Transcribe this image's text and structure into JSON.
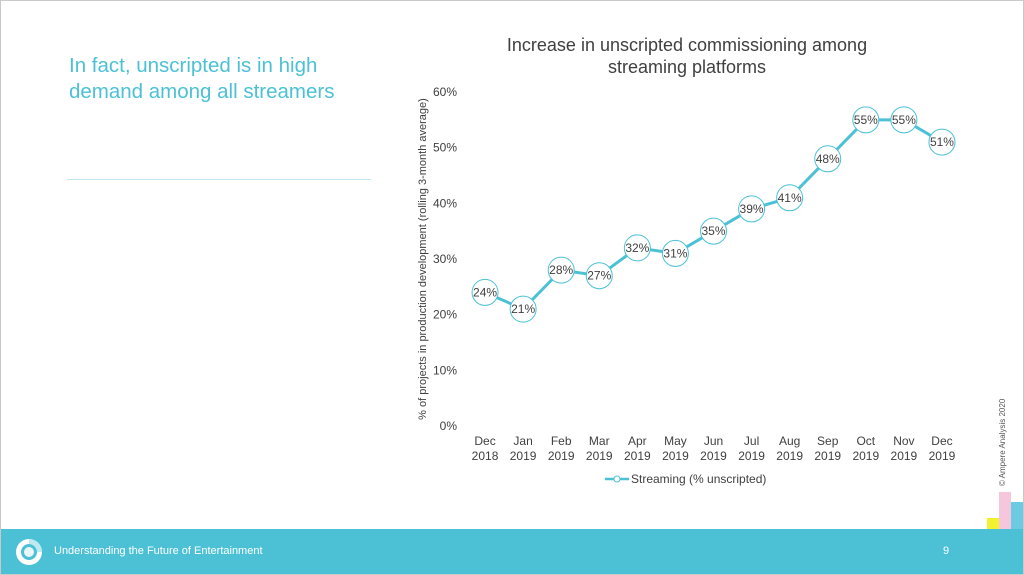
{
  "headline": "In fact, unscripted is in high\ndemand among all streamers",
  "footer": {
    "text": "Understanding the Future of Entertainment",
    "page_number": "9"
  },
  "copyright": "© Ampere Analysis 2020",
  "colors": {
    "accent": "#4cc1d6",
    "text": "#404040",
    "deco_teal": "#9fd4cf",
    "deco_yellow": "#f2f230",
    "deco_pink": "#f5c6dc",
    "deco_blue": "#6ccbe3"
  },
  "chart_data": {
    "type": "line",
    "title": "Increase in unscripted commissioning among streaming platforms",
    "title_lines": [
      "Increase in unscripted commissioning among",
      "streaming platforms"
    ],
    "ylabel": "% of projects in production development (rolling 3-month average)",
    "xlabel": "",
    "ylim": [
      0,
      60
    ],
    "yticks": [
      0,
      10,
      20,
      30,
      40,
      50,
      60
    ],
    "ytick_labels": [
      "0%",
      "10%",
      "20%",
      "30%",
      "40%",
      "50%",
      "60%"
    ],
    "grid": false,
    "legend_position": "bottom",
    "categories": [
      [
        "Dec",
        "2018"
      ],
      [
        "Jan",
        "2019"
      ],
      [
        "Feb",
        "2019"
      ],
      [
        "Mar",
        "2019"
      ],
      [
        "Apr",
        "2019"
      ],
      [
        "May",
        "2019"
      ],
      [
        "Jun",
        "2019"
      ],
      [
        "Jul",
        "2019"
      ],
      [
        "Aug",
        "2019"
      ],
      [
        "Sep",
        "2019"
      ],
      [
        "Oct",
        "2019"
      ],
      [
        "Nov",
        "2019"
      ],
      [
        "Dec",
        "2019"
      ]
    ],
    "series": [
      {
        "name": "Streaming (% unscripted)",
        "values": [
          24,
          21,
          28,
          27,
          32,
          31,
          35,
          39,
          41,
          48,
          55,
          55,
          51
        ],
        "labels": [
          "24%",
          "21%",
          "28%",
          "27%",
          "32%",
          "31%",
          "35%",
          "39%",
          "41%",
          "48%",
          "55%",
          "55%",
          "51%"
        ]
      }
    ]
  }
}
